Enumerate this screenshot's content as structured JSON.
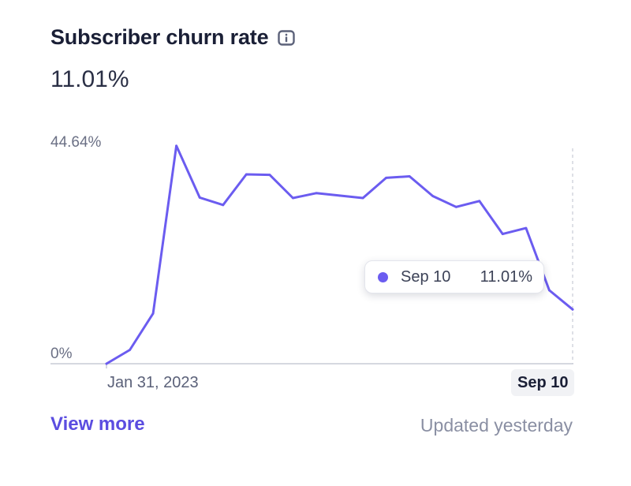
{
  "header": {
    "title": "Subscriber churn rate",
    "info_icon": "info-icon",
    "current_value": "11.01%"
  },
  "chart_data": {
    "type": "line",
    "title": "Subscriber churn rate",
    "y_unit": "%",
    "ylim": [
      0,
      44.64
    ],
    "y_tick_labels": [
      "44.64%",
      "0%"
    ],
    "x_start_label": "Jan 31, 2023",
    "x_end_label": "Sep 10",
    "grid": false,
    "line_color": "#6b5cf0",
    "values": [
      0.0,
      2.8,
      10.2,
      44.2,
      33.7,
      32.2,
      38.4,
      38.3,
      33.6,
      34.6,
      34.1,
      33.6,
      37.7,
      38.0,
      34.0,
      31.8,
      33.0,
      26.3,
      27.5,
      14.9,
      11.01
    ],
    "tooltip": {
      "date": "Sep 10",
      "value": "11.01%"
    }
  },
  "footer": {
    "view_more_label": "View more",
    "updated_label": "Updated yesterday"
  },
  "colors": {
    "accent": "#6b5cf0",
    "link": "#5b4de0",
    "muted_text": "#8a8fa3"
  }
}
